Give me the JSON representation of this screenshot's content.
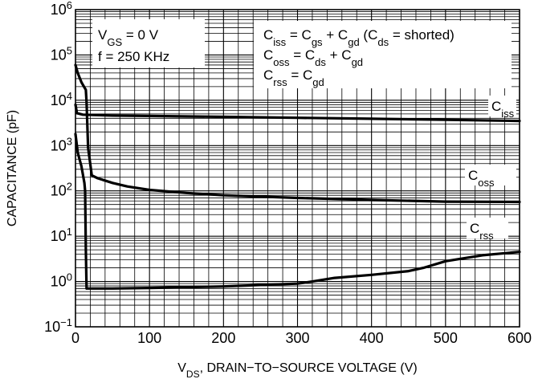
{
  "chart_data": {
    "type": "line",
    "xlabel": "DRAIN−TO−SOURCE VOLTAGE (V)",
    "xlabel_symbol": {
      "main": "V",
      "sub": "DS"
    },
    "ylabel": "CAPACITANCE (pF)",
    "y_scale": "log",
    "xlim": [
      0,
      600
    ],
    "ylim": [
      0.1,
      1000000
    ],
    "x_ticks": [
      "0",
      "100",
      "200",
      "300",
      "400",
      "500",
      "600"
    ],
    "y_ticks": [
      {
        "base": "10",
        "exp": "−1"
      },
      {
        "base": "10",
        "exp": "0"
      },
      {
        "base": "10",
        "exp": "1"
      },
      {
        "base": "10",
        "exp": "2"
      },
      {
        "base": "10",
        "exp": "3"
      },
      {
        "base": "10",
        "exp": "4"
      },
      {
        "base": "10",
        "exp": "5"
      },
      {
        "base": "10",
        "exp": "6"
      }
    ],
    "grid": true,
    "series": [
      {
        "name": "C_iss",
        "label": {
          "main": "C",
          "sub": "iss"
        },
        "points": [
          [
            0,
            8000
          ],
          [
            2,
            5200
          ],
          [
            10,
            4800
          ],
          [
            50,
            4600
          ],
          [
            100,
            4500
          ],
          [
            200,
            4300
          ],
          [
            300,
            4100
          ],
          [
            400,
            3900
          ],
          [
            500,
            3700
          ],
          [
            600,
            3500
          ]
        ]
      },
      {
        "name": "C_oss",
        "label": {
          "main": "C",
          "sub": "oss"
        },
        "points": [
          [
            0,
            60000
          ],
          [
            3,
            40000
          ],
          [
            8,
            25000
          ],
          [
            14,
            17000
          ],
          [
            15,
            9000
          ],
          [
            17,
            900
          ],
          [
            22,
            220
          ],
          [
            30,
            190
          ],
          [
            50,
            150
          ],
          [
            70,
            125
          ],
          [
            100,
            105
          ],
          [
            150,
            90
          ],
          [
            200,
            80
          ],
          [
            300,
            70
          ],
          [
            400,
            63
          ],
          [
            500,
            58
          ],
          [
            600,
            57
          ]
        ]
      },
      {
        "name": "C_rss",
        "label": {
          "main": "C",
          "sub": "rss"
        },
        "points": [
          [
            0,
            1800
          ],
          [
            3,
            700
          ],
          [
            8,
            350
          ],
          [
            12,
            150
          ],
          [
            13,
            100
          ],
          [
            14,
            5
          ],
          [
            15,
            0.7
          ],
          [
            50,
            0.7
          ],
          [
            100,
            0.72
          ],
          [
            200,
            0.78
          ],
          [
            300,
            0.9
          ],
          [
            320,
            1.0
          ],
          [
            350,
            1.2
          ],
          [
            400,
            1.4
          ],
          [
            450,
            1.7
          ],
          [
            470,
            2.0
          ],
          [
            500,
            2.8
          ],
          [
            550,
            3.8
          ],
          [
            600,
            4.5
          ]
        ]
      }
    ],
    "annotations": {
      "conditions": [
        {
          "main": "V",
          "sub": "GS",
          "rest": " = 0 V"
        },
        {
          "text": "f = 250 KHz"
        }
      ],
      "formulas": [
        [
          {
            "t": "C"
          },
          {
            "s": "iss"
          },
          {
            "t": " = C"
          },
          {
            "s": "gs"
          },
          {
            "t": " + C"
          },
          {
            "s": "gd"
          },
          {
            "t": " (C"
          },
          {
            "s": "ds"
          },
          {
            "t": " = shorted)"
          }
        ],
        [
          {
            "t": "C"
          },
          {
            "s": "oss"
          },
          {
            "t": " = C"
          },
          {
            "s": "ds"
          },
          {
            "t": " + C"
          },
          {
            "s": "gd"
          }
        ],
        [
          {
            "t": "C"
          },
          {
            "s": "rss"
          },
          {
            "t": " = C"
          },
          {
            "s": "gd"
          }
        ]
      ]
    }
  }
}
